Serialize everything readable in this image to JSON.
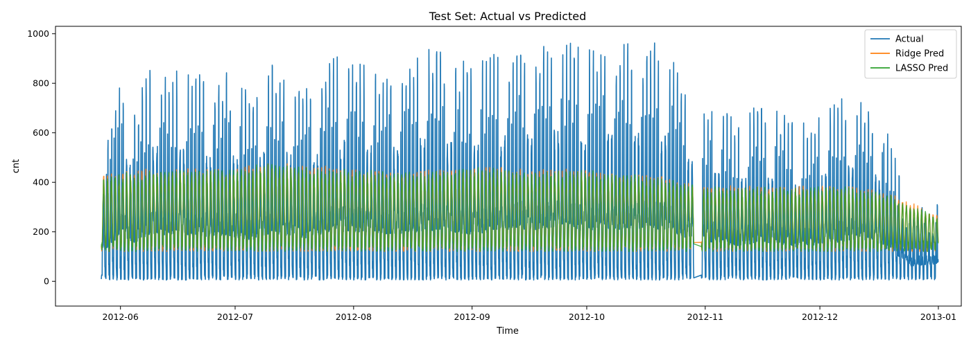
{
  "chart_data": {
    "type": "line",
    "title": "Test Set: Actual vs Predicted",
    "xlabel": "Time",
    "ylabel": "cnt",
    "x_ticks": [
      "2012-06",
      "2012-07",
      "2012-08",
      "2012-09",
      "2012-10",
      "2012-11",
      "2012-12",
      "2013-01"
    ],
    "y_ticks": [
      0,
      200,
      400,
      600,
      800,
      1000
    ],
    "xlim": [
      "2012-05-15",
      "2013-01-07"
    ],
    "ylim": [
      -100,
      1030
    ],
    "grid": false,
    "legend_position": "top-right",
    "x_range": [
      "2012-05-27",
      "2012-12-31"
    ],
    "gap_x_range": [
      "2012-10-29",
      "2012-10-31"
    ],
    "series": [
      {
        "name": "Actual",
        "color": "#1f77b4",
        "daily_peaks": [
          {
            "x": "2012-05-28",
            "y": 570
          },
          {
            "x": "2012-06-01",
            "y": 840
          },
          {
            "x": "2012-06-05",
            "y": 700
          },
          {
            "x": "2012-06-08",
            "y": 835
          },
          {
            "x": "2012-06-10",
            "y": 870
          },
          {
            "x": "2012-06-15",
            "y": 830
          },
          {
            "x": "2012-06-18",
            "y": 860
          },
          {
            "x": "2012-06-22",
            "y": 815
          },
          {
            "x": "2012-06-27",
            "y": 835
          },
          {
            "x": "2012-06-29",
            "y": 840
          },
          {
            "x": "2012-07-05",
            "y": 745
          },
          {
            "x": "2012-07-10",
            "y": 870
          },
          {
            "x": "2012-07-14",
            "y": 830
          },
          {
            "x": "2012-07-20",
            "y": 775
          },
          {
            "x": "2012-07-26",
            "y": 910
          },
          {
            "x": "2012-08-01",
            "y": 895
          },
          {
            "x": "2012-08-07",
            "y": 870
          },
          {
            "x": "2012-08-14",
            "y": 860
          },
          {
            "x": "2012-08-20",
            "y": 940
          },
          {
            "x": "2012-08-27",
            "y": 890
          },
          {
            "x": "2012-09-01",
            "y": 860
          },
          {
            "x": "2012-09-06",
            "y": 900
          },
          {
            "x": "2012-09-12",
            "y": 975
          },
          {
            "x": "2012-09-17",
            "y": 940
          },
          {
            "x": "2012-09-22",
            "y": 975
          },
          {
            "x": "2012-09-26",
            "y": 960
          },
          {
            "x": "2012-10-01",
            "y": 915
          },
          {
            "x": "2012-10-05",
            "y": 945
          },
          {
            "x": "2012-10-10",
            "y": 950
          },
          {
            "x": "2012-10-16",
            "y": 960
          },
          {
            "x": "2012-10-22",
            "y": 940
          },
          {
            "x": "2012-10-26",
            "y": 820
          },
          {
            "x": "2012-11-02",
            "y": 720
          },
          {
            "x": "2012-11-09",
            "y": 645
          },
          {
            "x": "2012-11-15",
            "y": 700
          },
          {
            "x": "2012-11-19",
            "y": 710
          },
          {
            "x": "2012-11-25",
            "y": 615
          },
          {
            "x": "2012-12-03",
            "y": 695
          },
          {
            "x": "2012-12-07",
            "y": 730
          },
          {
            "x": "2012-12-11",
            "y": 760
          },
          {
            "x": "2012-12-17",
            "y": 670
          },
          {
            "x": "2012-12-21",
            "y": 480
          },
          {
            "x": "2012-12-25",
            "y": 280
          },
          {
            "x": "2012-12-30",
            "y": 315
          }
        ],
        "overnight_low": 5
      },
      {
        "name": "Ridge Pred",
        "color": "#ff7f0e",
        "daily_peaks": [
          {
            "x": "2012-05-28",
            "y": 430
          },
          {
            "x": "2012-06-10",
            "y": 455
          },
          {
            "x": "2012-07-01",
            "y": 455
          },
          {
            "x": "2012-07-08",
            "y": 480
          },
          {
            "x": "2012-08-01",
            "y": 450
          },
          {
            "x": "2012-08-15",
            "y": 440
          },
          {
            "x": "2012-09-01",
            "y": 460
          },
          {
            "x": "2012-09-20",
            "y": 445
          },
          {
            "x": "2012-10-03",
            "y": 450
          },
          {
            "x": "2012-10-20",
            "y": 420
          },
          {
            "x": "2012-11-01",
            "y": 385
          },
          {
            "x": "2012-11-20",
            "y": 380
          },
          {
            "x": "2012-12-08",
            "y": 385
          },
          {
            "x": "2012-12-20",
            "y": 350
          },
          {
            "x": "2012-12-31",
            "y": 270
          }
        ],
        "overnight_low": 120
      },
      {
        "name": "LASSO Pred",
        "color": "#2ca02c",
        "daily_peaks": [
          {
            "x": "2012-05-28",
            "y": 425
          },
          {
            "x": "2012-06-10",
            "y": 450
          },
          {
            "x": "2012-07-01",
            "y": 450
          },
          {
            "x": "2012-07-08",
            "y": 470
          },
          {
            "x": "2012-08-01",
            "y": 445
          },
          {
            "x": "2012-08-15",
            "y": 435
          },
          {
            "x": "2012-09-01",
            "y": 455
          },
          {
            "x": "2012-09-20",
            "y": 440
          },
          {
            "x": "2012-10-03",
            "y": 445
          },
          {
            "x": "2012-10-20",
            "y": 415
          },
          {
            "x": "2012-11-01",
            "y": 380
          },
          {
            "x": "2012-11-20",
            "y": 375
          },
          {
            "x": "2012-12-08",
            "y": 380
          },
          {
            "x": "2012-12-20",
            "y": 345
          },
          {
            "x": "2012-12-31",
            "y": 265
          }
        ],
        "overnight_low": 120
      }
    ]
  }
}
